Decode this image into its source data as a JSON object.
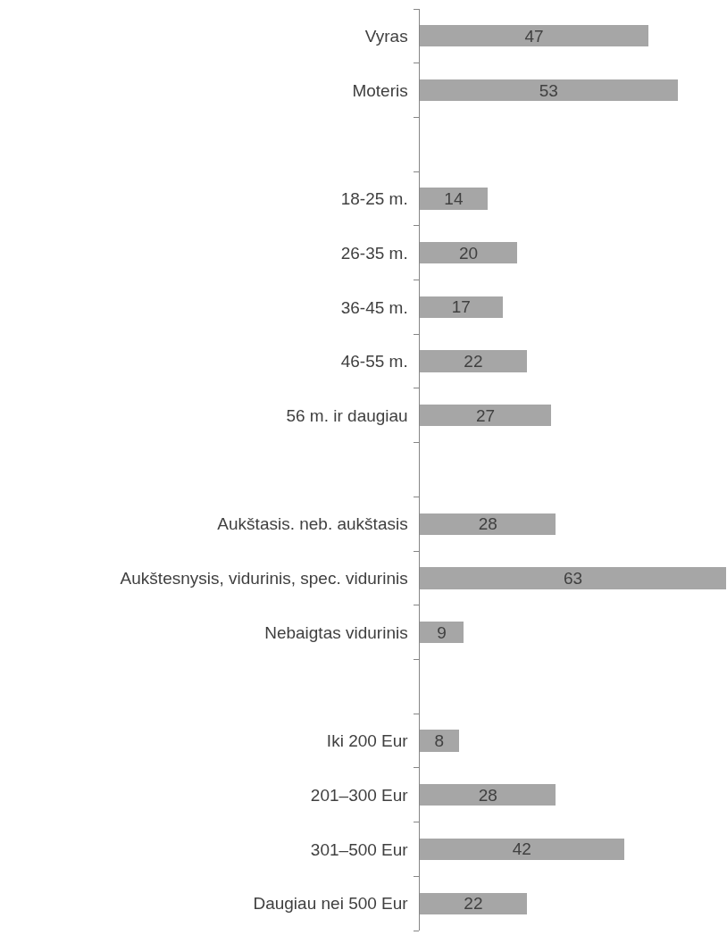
{
  "chart_data": {
    "type": "bar",
    "orientation": "horizontal",
    "categories": [
      "Vyras",
      "Moteris",
      null,
      "18-25 m.",
      "26-35 m.",
      "36-45 m.",
      "46-55 m.",
      "56 m. ir daugiau",
      null,
      "Aukštasis. neb. aukštasis",
      "Aukštesnysis, vidurinis, spec. vidurinis",
      "Nebaigtas vidurinis",
      null,
      "Iki 200 Eur",
      "201–300 Eur",
      "301–500 Eur",
      "Daugiau nei 500 Eur"
    ],
    "values": [
      47,
      53,
      null,
      14,
      20,
      17,
      22,
      27,
      null,
      28,
      63,
      9,
      null,
      8,
      28,
      42,
      22
    ],
    "color": "#a6a6a6",
    "data_labels": true,
    "tick_labels": "y"
  }
}
